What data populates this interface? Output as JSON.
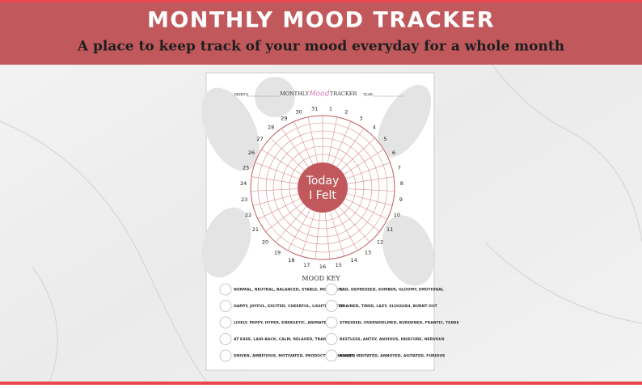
{
  "header": {
    "title": "MONTHLY MOOD TRACKER",
    "subtitle": "A place to keep track of your mood everyday for a whole month"
  },
  "sheet": {
    "month_label": "MONTH",
    "title_parts": [
      "MONTHLY",
      "Mood",
      "TRACKER"
    ],
    "year_label": "YEAR:",
    "center_text": [
      "Today",
      "I Felt"
    ],
    "days": [
      1,
      2,
      3,
      4,
      5,
      6,
      7,
      8,
      9,
      10,
      11,
      12,
      13,
      14,
      15,
      16,
      17,
      18,
      19,
      20,
      21,
      22,
      23,
      24,
      25,
      26,
      27,
      28,
      29,
      30,
      31
    ]
  },
  "mood_key": {
    "title": "MOOD KEY",
    "items": [
      "NORMAL, NEUTRAL, BALANCED, STABLE, MODERATE",
      "HAPPY, JOYFUL, EXCITED, CHEERFUL, LIGHTHEARTED",
      "LIVELY, PEPPY, HYPER, ENERGETIC, ANIMATED",
      "AT EASE, LAID-BACK, CALM, RELAXED, TRANQUIL",
      "DRIVEN, AMBITIOUS, MOTIVATED, PRODUCTIVE, ENGAGED",
      "SAD, DEPRESSED, SOMBER, GLOOMY, EMOTIONAL",
      "DRAINED, TIRED, LAZY, SLUGGISH, BURNT OUT",
      "STRESSED, OVERWHELMED, BURDENED, FRANTIC, TENSE",
      "RESTLESS, ANTSY, ANXIOUS, INSECURE, NERVOUS",
      "ANGRY, IRRITATED, ANNOYED, AGITATED, FURIOUS"
    ]
  }
}
